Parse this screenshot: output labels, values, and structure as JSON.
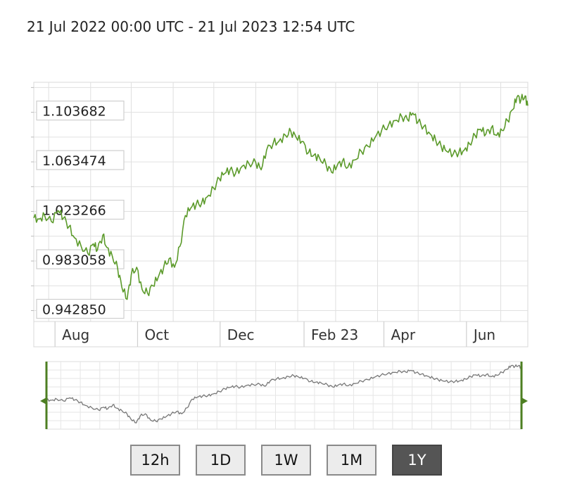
{
  "header": {
    "range": "21 Jul 2022 00:00 UTC - 21 Jul 2023 12:54 UTC"
  },
  "chart_data": {
    "type": "line",
    "title": "21 Jul 2022 00:00 UTC - 21 Jul 2023 12:54 UTC",
    "x_tick_labels": [
      "Aug",
      "Oct",
      "Dec",
      "Feb 23",
      "Apr",
      "Jun"
    ],
    "y_tick_labels": [
      "1.103682",
      "1.063474",
      "1.023266",
      "0.983058",
      "0.942850"
    ],
    "y_ticks": [
      1.103682,
      1.063474,
      1.023266,
      0.983058,
      0.94285
    ],
    "ylim": [
      0.934,
      1.128
    ],
    "xlim": [
      "2022-07-21",
      "2023-07-21"
    ],
    "grid": true,
    "series": [
      {
        "color": "#5b9a2a",
        "points": [
          [
            "2022-07-21",
            1.018
          ],
          [
            "2022-07-25",
            1.017
          ],
          [
            "2022-07-29",
            1.02
          ],
          [
            "2022-08-03",
            1.015
          ],
          [
            "2022-08-08",
            1.024
          ],
          [
            "2022-08-12",
            1.018
          ],
          [
            "2022-08-16",
            1.011
          ],
          [
            "2022-08-20",
            1.002
          ],
          [
            "2022-08-25",
            0.995
          ],
          [
            "2022-08-30",
            0.989
          ],
          [
            "2022-09-03",
            0.997
          ],
          [
            "2022-09-06",
            0.992
          ],
          [
            "2022-09-10",
            1.004
          ],
          [
            "2022-09-13",
            0.994
          ],
          [
            "2022-09-17",
            0.987
          ],
          [
            "2022-09-21",
            0.977
          ],
          [
            "2022-09-24",
            0.962
          ],
          [
            "2022-09-28",
            0.952
          ],
          [
            "2022-10-01",
            0.972
          ],
          [
            "2022-10-05",
            0.978
          ],
          [
            "2022-10-09",
            0.96
          ],
          [
            "2022-10-13",
            0.957
          ],
          [
            "2022-10-17",
            0.963
          ],
          [
            "2022-10-21",
            0.97
          ],
          [
            "2022-10-25",
            0.978
          ],
          [
            "2022-10-29",
            0.985
          ],
          [
            "2022-11-02",
            0.978
          ],
          [
            "2022-11-06",
            0.995
          ],
          [
            "2022-11-10",
            1.02
          ],
          [
            "2022-11-14",
            1.026
          ],
          [
            "2022-11-18",
            1.029
          ],
          [
            "2022-11-22",
            1.03
          ],
          [
            "2022-11-26",
            1.035
          ],
          [
            "2022-12-01",
            1.042
          ],
          [
            "2022-12-05",
            1.05
          ],
          [
            "2022-12-09",
            1.054
          ],
          [
            "2022-12-13",
            1.057
          ],
          [
            "2022-12-17",
            1.054
          ],
          [
            "2022-12-22",
            1.06
          ],
          [
            "2022-12-27",
            1.062
          ],
          [
            "2023-01-01",
            1.063
          ],
          [
            "2023-01-05",
            1.057
          ],
          [
            "2023-01-09",
            1.073
          ],
          [
            "2023-01-14",
            1.079
          ],
          [
            "2023-01-18",
            1.08
          ],
          [
            "2023-01-23",
            1.085
          ],
          [
            "2023-01-27",
            1.088
          ],
          [
            "2023-01-31",
            1.083
          ],
          [
            "2023-02-04",
            1.08
          ],
          [
            "2023-02-09",
            1.071
          ],
          [
            "2023-02-13",
            1.069
          ],
          [
            "2023-02-17",
            1.067
          ],
          [
            "2023-02-22",
            1.061
          ],
          [
            "2023-02-26",
            1.055
          ],
          [
            "2023-03-02",
            1.06
          ],
          [
            "2023-03-06",
            1.064
          ],
          [
            "2023-03-10",
            1.059
          ],
          [
            "2023-03-15",
            1.065
          ],
          [
            "2023-03-20",
            1.072
          ],
          [
            "2023-03-25",
            1.076
          ],
          [
            "2023-03-30",
            1.083
          ],
          [
            "2023-04-04",
            1.089
          ],
          [
            "2023-04-09",
            1.093
          ],
          [
            "2023-04-14",
            1.097
          ],
          [
            "2023-04-19",
            1.1
          ],
          [
            "2023-04-23",
            1.098
          ],
          [
            "2023-04-27",
            1.103
          ],
          [
            "2023-05-01",
            1.096
          ],
          [
            "2023-05-05",
            1.092
          ],
          [
            "2023-05-10",
            1.086
          ],
          [
            "2023-05-14",
            1.081
          ],
          [
            "2023-05-18",
            1.076
          ],
          [
            "2023-05-22",
            1.072
          ],
          [
            "2023-05-27",
            1.07
          ],
          [
            "2023-05-31",
            1.071
          ],
          [
            "2023-06-04",
            1.073
          ],
          [
            "2023-06-08",
            1.078
          ],
          [
            "2023-06-12",
            1.085
          ],
          [
            "2023-06-16",
            1.09
          ],
          [
            "2023-06-20",
            1.086
          ],
          [
            "2023-06-24",
            1.091
          ],
          [
            "2023-06-28",
            1.085
          ],
          [
            "2023-07-02",
            1.089
          ],
          [
            "2023-07-06",
            1.097
          ],
          [
            "2023-07-10",
            1.106
          ],
          [
            "2023-07-13",
            1.116
          ],
          [
            "2023-07-16",
            1.114
          ],
          [
            "2023-07-19",
            1.117
          ],
          [
            "2023-07-21",
            1.109
          ]
        ]
      }
    ]
  },
  "buttons": [
    {
      "label": "12h",
      "active": false
    },
    {
      "label": "1D",
      "active": false
    },
    {
      "label": "1W",
      "active": false
    },
    {
      "label": "1M",
      "active": false
    },
    {
      "label": "1Y",
      "active": true
    }
  ]
}
